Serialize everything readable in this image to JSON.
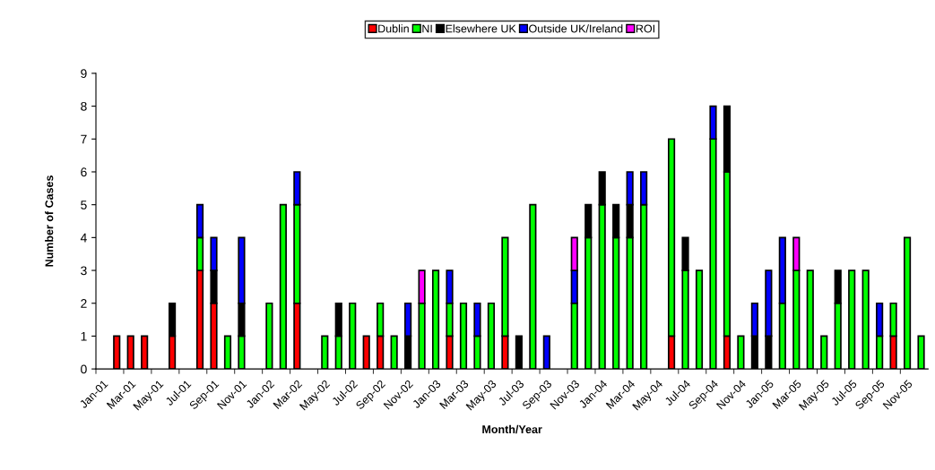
{
  "chart_data": {
    "type": "bar",
    "stacked": true,
    "xlabel": "Month/Year",
    "ylabel": "Number of Cases",
    "categories": [
      "Jan-01",
      null,
      "Mar-01",
      null,
      "May-01",
      null,
      "Jul-01",
      null,
      "Sep-01",
      null,
      "Nov-01",
      null,
      "Jan-02",
      null,
      "Mar-02",
      null,
      "May-02",
      null,
      "Jul-02",
      null,
      "Sep-02",
      null,
      "Nov-02",
      null,
      "Jan-03",
      null,
      "Mar-03",
      null,
      "May-03",
      null,
      "Jul-03",
      null,
      "Sep-03",
      null,
      "Nov-03",
      null,
      "Jan-04",
      null,
      "Mar-04",
      null,
      "May-04",
      null,
      "Jul-04",
      null,
      "Sep-04",
      null,
      "Nov-04",
      null,
      "Jan-05",
      null,
      "Mar-05",
      null,
      "May-05",
      null,
      "Jul-05",
      null,
      "Sep-05",
      null,
      "Nov-05",
      null
    ],
    "series": [
      {
        "name": "Dublin",
        "color": "#ff0000",
        "values": [
          null,
          1,
          1,
          1,
          null,
          1,
          null,
          3,
          2,
          null,
          null,
          null,
          null,
          null,
          2,
          null,
          null,
          null,
          null,
          1,
          1,
          null,
          null,
          null,
          null,
          1,
          null,
          null,
          null,
          1,
          null,
          null,
          null,
          null,
          null,
          null,
          null,
          null,
          null,
          null,
          null,
          1,
          null,
          null,
          null,
          1,
          null,
          null,
          null,
          null,
          null,
          null,
          null,
          null,
          null,
          null,
          null,
          1,
          null,
          null
        ]
      },
      {
        "name": "NI",
        "color": "#00ff00",
        "values": [
          null,
          null,
          null,
          null,
          null,
          null,
          null,
          1,
          null,
          1,
          1,
          null,
          2,
          5,
          3,
          null,
          1,
          1,
          2,
          null,
          1,
          1,
          null,
          2,
          3,
          1,
          2,
          1,
          2,
          3,
          null,
          5,
          null,
          null,
          2,
          4,
          5,
          4,
          4,
          5,
          null,
          6,
          3,
          3,
          7,
          5,
          1,
          null,
          null,
          2,
          3,
          3,
          1,
          2,
          3,
          3,
          1,
          1,
          4,
          1
        ]
      },
      {
        "name": "Elsewhere UK",
        "color": "#000000",
        "values": [
          null,
          null,
          null,
          null,
          null,
          1,
          null,
          null,
          1,
          null,
          1,
          null,
          null,
          null,
          null,
          null,
          null,
          1,
          null,
          null,
          null,
          null,
          1,
          null,
          null,
          null,
          null,
          null,
          null,
          null,
          1,
          null,
          null,
          null,
          null,
          1,
          1,
          1,
          1,
          null,
          null,
          null,
          1,
          null,
          null,
          2,
          null,
          1,
          1,
          null,
          null,
          null,
          null,
          1,
          null,
          null,
          null,
          null,
          null,
          null
        ]
      },
      {
        "name": "Outside UK/Ireland",
        "color": "#0000ff",
        "values": [
          null,
          null,
          null,
          null,
          null,
          null,
          null,
          1,
          1,
          null,
          2,
          null,
          null,
          null,
          1,
          null,
          null,
          null,
          null,
          null,
          null,
          null,
          1,
          null,
          null,
          1,
          null,
          1,
          null,
          null,
          null,
          null,
          1,
          null,
          1,
          null,
          null,
          null,
          1,
          1,
          null,
          null,
          null,
          null,
          1,
          null,
          null,
          1,
          2,
          2,
          null,
          null,
          null,
          null,
          null,
          null,
          1,
          null,
          null,
          null
        ]
      },
      {
        "name": "ROI",
        "color": "#ff00ff",
        "values": [
          null,
          null,
          null,
          null,
          null,
          null,
          null,
          null,
          null,
          null,
          null,
          null,
          null,
          null,
          null,
          null,
          null,
          null,
          null,
          null,
          null,
          null,
          null,
          1,
          null,
          null,
          null,
          null,
          null,
          null,
          null,
          null,
          null,
          null,
          1,
          null,
          null,
          null,
          null,
          null,
          null,
          null,
          null,
          null,
          null,
          null,
          null,
          null,
          null,
          null,
          1,
          null,
          null,
          null,
          null,
          null,
          null,
          null,
          null,
          null
        ]
      }
    ],
    "ylim": [
      0,
      9
    ],
    "yticks": [
      0,
      1,
      2,
      3,
      4,
      5,
      6,
      7,
      8,
      9
    ],
    "grid": false,
    "legend": "top"
  }
}
